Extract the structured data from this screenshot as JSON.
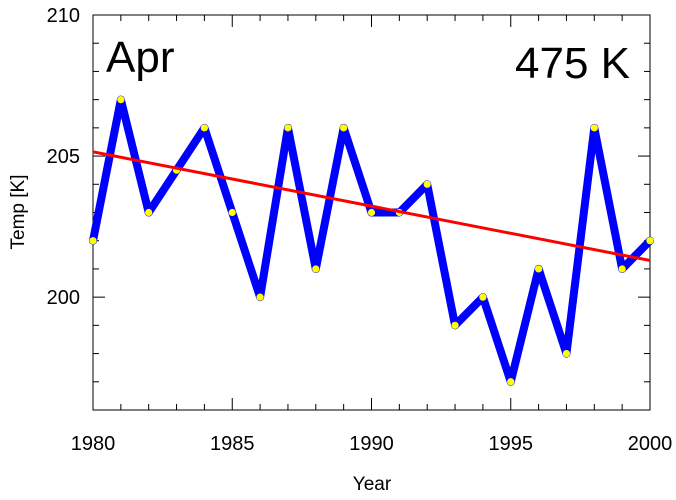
{
  "chart_data": {
    "type": "line",
    "title": "",
    "annotations": {
      "month": "Apr",
      "level": "475 K"
    },
    "xlabel": "Year",
    "ylabel": "Temp [K]",
    "xlim": [
      1980,
      2000
    ],
    "ylim": [
      196,
      210
    ],
    "x_ticks": [
      1980,
      1985,
      1990,
      1995,
      2000
    ],
    "y_ticks": [
      200,
      205,
      210
    ],
    "grid": false,
    "series": [
      {
        "color": "#0000ff",
        "marker_color": "#ffff00",
        "x": [
          1980,
          1981,
          1982,
          1983,
          1984,
          1985,
          1986,
          1987,
          1988,
          1989,
          1990,
          1991,
          1992,
          1993,
          1994,
          1995,
          1996,
          1997,
          1998,
          1999,
          2000
        ],
        "y": [
          202,
          207,
          203,
          204.5,
          206,
          203,
          200,
          206,
          201,
          206,
          203,
          203,
          204,
          199,
          200,
          197,
          201,
          198,
          206,
          201,
          202
        ]
      }
    ],
    "trend": {
      "color": "#ff0000",
      "x": [
        1980,
        2000
      ],
      "y": [
        205.15,
        201.3
      ]
    }
  }
}
